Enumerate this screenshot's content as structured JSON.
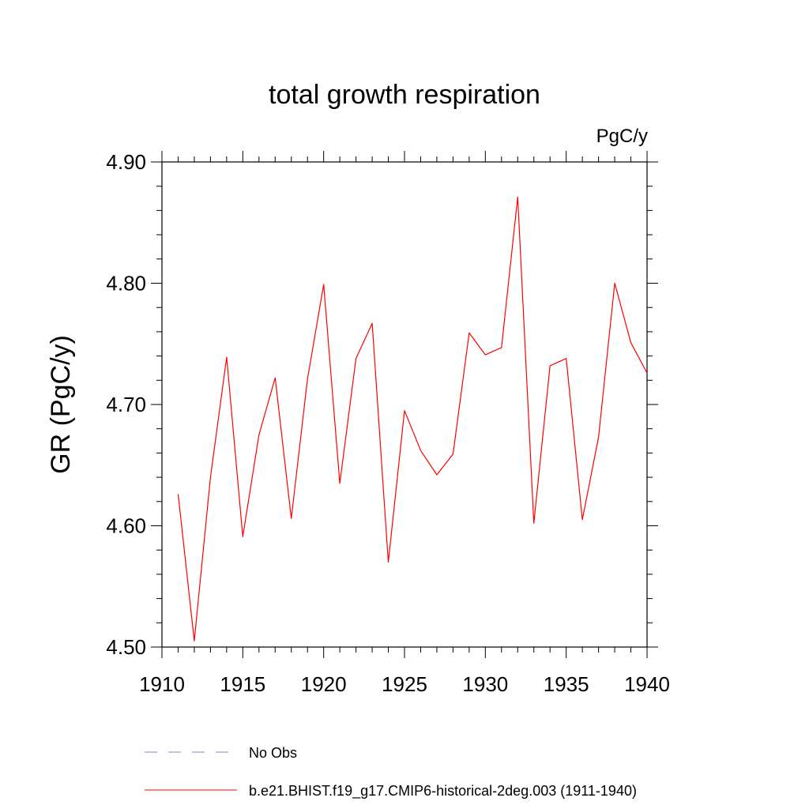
{
  "chart_data": {
    "type": "line",
    "title": "total growth respiration",
    "subtitle": "PgC/y",
    "ylabel": "GR  (PgC/y)",
    "xlabel": "",
    "xlim": [
      1910,
      1940
    ],
    "ylim": [
      4.5,
      4.9
    ],
    "x_ticks": [
      1910,
      1915,
      1920,
      1925,
      1930,
      1935,
      1940
    ],
    "x_tick_labels": [
      "1910",
      "1915",
      "1920",
      "1925",
      "1930",
      "1935",
      "1940"
    ],
    "y_ticks": [
      4.5,
      4.6,
      4.7,
      4.8,
      4.9
    ],
    "y_tick_labels": [
      "4.50",
      "4.60",
      "4.70",
      "4.80",
      "4.90"
    ],
    "grid": false,
    "legend_position": "bottom",
    "series": [
      {
        "name": "b.e21.BHIST.f19_g17.CMIP6-historical-2deg.003 (1911-1940)",
        "color": "#ff0000",
        "style": "solid",
        "x": [
          1911,
          1912,
          1913,
          1914,
          1915,
          1916,
          1917,
          1918,
          1919,
          1920,
          1921,
          1922,
          1923,
          1924,
          1925,
          1926,
          1927,
          1928,
          1929,
          1930,
          1931,
          1932,
          1933,
          1934,
          1935,
          1936,
          1937,
          1938,
          1939,
          1940
        ],
        "values": [
          4.626,
          4.505,
          4.64,
          4.739,
          4.591,
          4.675,
          4.722,
          4.606,
          4.721,
          4.799,
          4.635,
          4.738,
          4.767,
          4.57,
          4.695,
          4.662,
          4.642,
          4.659,
          4.759,
          4.741,
          4.747,
          4.871,
          4.602,
          4.732,
          4.738,
          4.605,
          4.673,
          4.8,
          4.751,
          4.726
        ]
      }
    ],
    "legend": [
      {
        "label": "No Obs",
        "color": "#8080c0",
        "style": "dashed"
      },
      {
        "label": "b.e21.BHIST.f19_g17.CMIP6-historical-2deg.003 (1911-1940)",
        "color": "#ff0000",
        "style": "solid"
      }
    ]
  }
}
